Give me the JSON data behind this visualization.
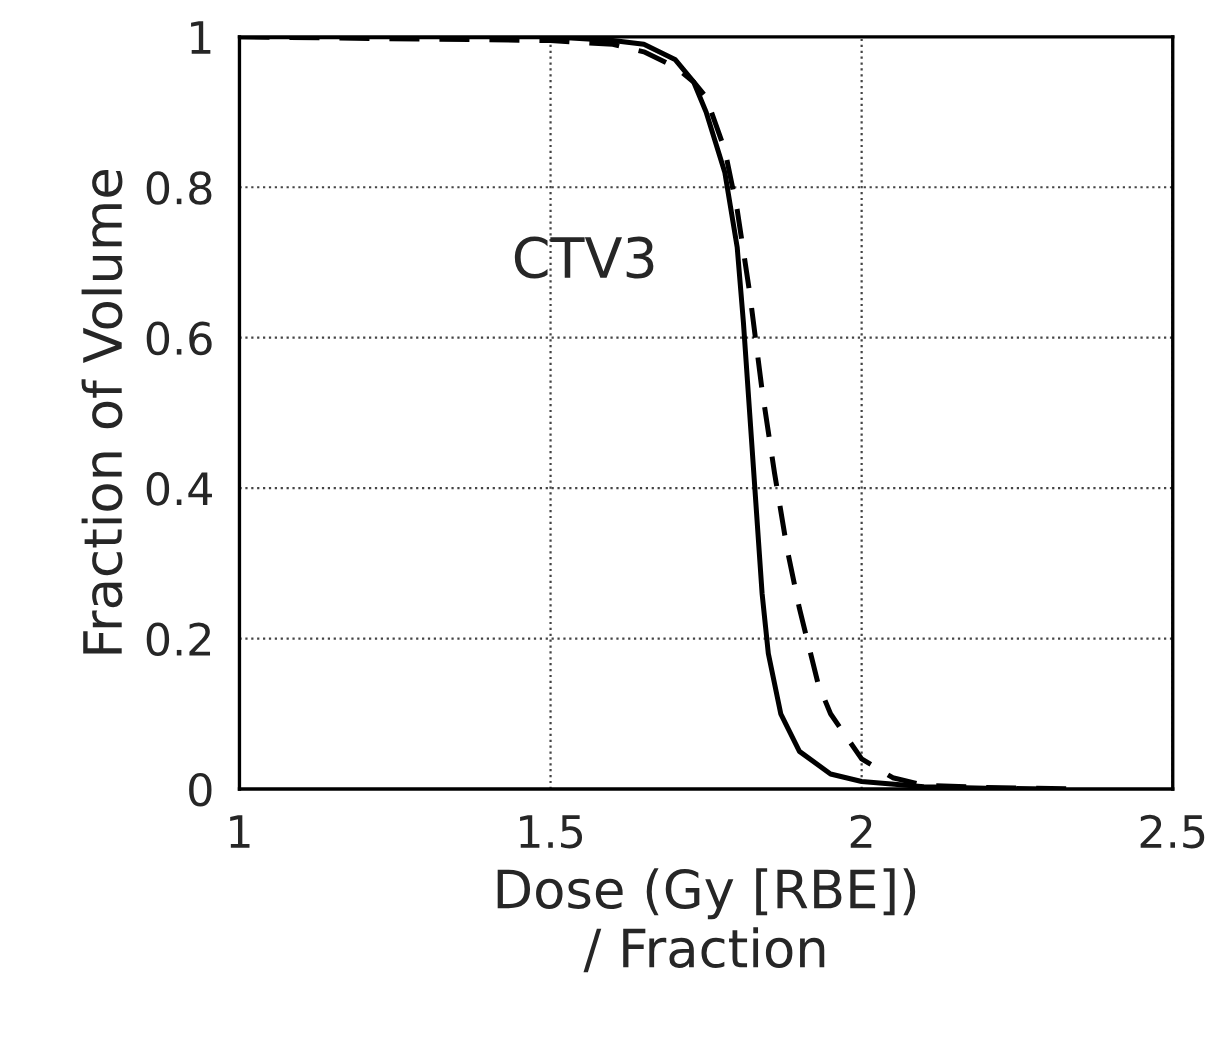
{
  "chart_data": {
    "type": "line",
    "xlabel": "Dose (Gy [RBE])\n/ Fraction",
    "ylabel": "Fraction of Volume",
    "xlim": [
      1,
      2.5
    ],
    "xticks": [
      1,
      1.5,
      2,
      2.5
    ],
    "ylim": [
      0,
      1
    ],
    "yticks": [
      0,
      0.2,
      0.4,
      0.6,
      0.8,
      1
    ],
    "grid": true,
    "legend": false,
    "annotations": [
      "CTV3"
    ],
    "series": [
      {
        "color": "#000000",
        "line_style": "solid",
        "x": [
          1.0,
          1.5,
          1.6,
          1.65,
          1.7,
          1.73,
          1.75,
          1.78,
          1.8,
          1.81,
          1.82,
          1.83,
          1.84,
          1.85,
          1.87,
          1.9,
          1.95,
          2.0,
          2.1,
          2.2,
          2.3
        ],
        "values": [
          1,
          1,
          0.995,
          0.99,
          0.97,
          0.94,
          0.9,
          0.82,
          0.72,
          0.62,
          0.5,
          0.38,
          0.26,
          0.18,
          0.1,
          0.05,
          0.02,
          0.01,
          0.003,
          0.001,
          0
        ]
      },
      {
        "color": "#000000",
        "line_style": "dashed",
        "x": [
          1.0,
          1.5,
          1.6,
          1.65,
          1.7,
          1.73,
          1.75,
          1.78,
          1.8,
          1.82,
          1.84,
          1.86,
          1.88,
          1.9,
          1.93,
          1.95,
          2.0,
          2.05,
          2.1,
          2.2,
          2.35
        ],
        "values": [
          1,
          0.995,
          0.99,
          0.98,
          0.96,
          0.94,
          0.92,
          0.85,
          0.77,
          0.66,
          0.53,
          0.42,
          0.32,
          0.24,
          0.14,
          0.1,
          0.04,
          0.015,
          0.005,
          0.002,
          0
        ]
      }
    ]
  }
}
